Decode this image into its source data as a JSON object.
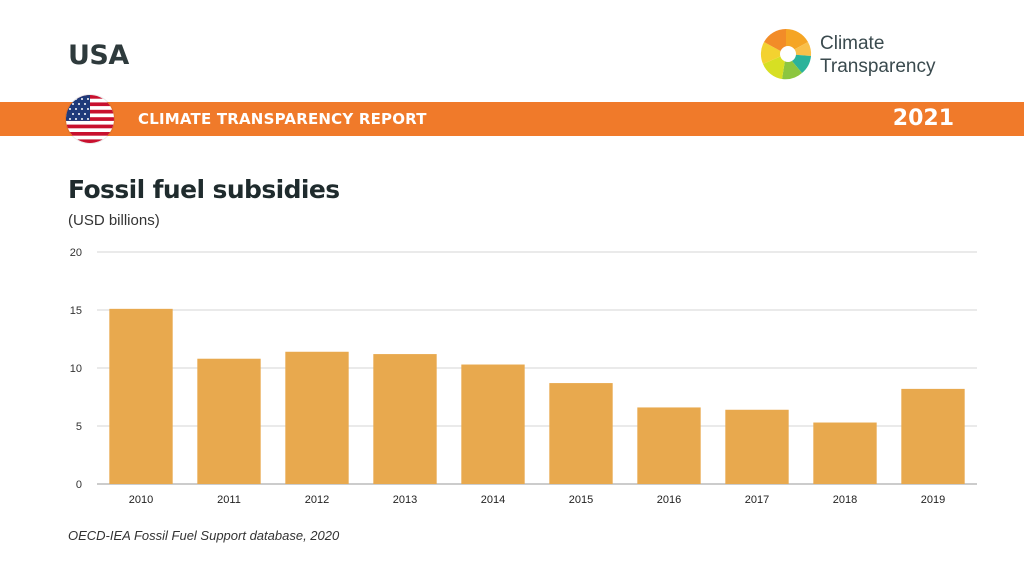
{
  "header": {
    "country": "USA",
    "report_title": "CLIMATE TRANSPARENCY REPORT",
    "year": "2021",
    "brand_line1": "Climate",
    "brand_line2": "Transparency",
    "band_color": "#f07a2a"
  },
  "chart_data": {
    "type": "bar",
    "title": "Fossil fuel subsidies",
    "unit": "(USD billions)",
    "categories": [
      "2010",
      "2011",
      "2012",
      "2013",
      "2014",
      "2015",
      "2016",
      "2017",
      "2018",
      "2019"
    ],
    "values": [
      15.1,
      10.8,
      11.4,
      11.2,
      10.3,
      8.7,
      6.6,
      6.4,
      5.3,
      8.2
    ],
    "ylim": [
      0,
      20
    ],
    "yticks": [
      0,
      5,
      10,
      15,
      20
    ],
    "bar_color": "#e8a94e",
    "grid": true,
    "legend": "none"
  },
  "source": "OECD-IEA Fossil Fuel Support database, 2020"
}
